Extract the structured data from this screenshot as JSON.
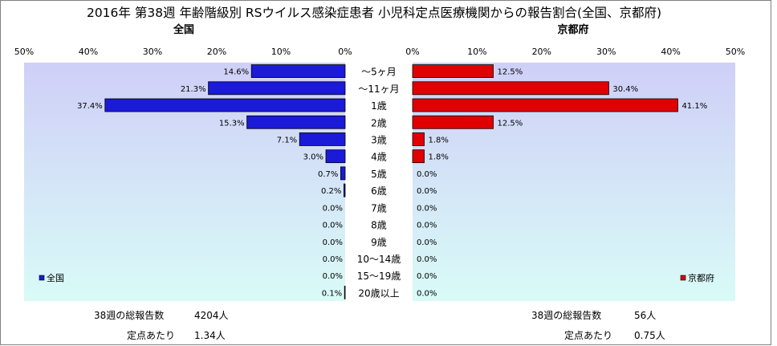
{
  "title": "2016年 第38週 年齢階級別 RSウイルス感染症患者 小児科定点医療機関からの報告割合(全国、京都府)",
  "colors": {
    "left_bar": "#1a1ad8",
    "right_bar": "#e00000",
    "plot_bg_top": "#cfcff7",
    "plot_bg_bottom": "#d9fbf7"
  },
  "chart_data": [
    {
      "type": "bar",
      "orientation": "horizontal",
      "direction": "right-to-left",
      "title": "全国",
      "legend": "全国",
      "legend_position": "bottom-left",
      "grid": false,
      "xlim": [
        0,
        50
      ],
      "x_ticks": [
        "50%",
        "40%",
        "30%",
        "20%",
        "10%",
        "0%"
      ],
      "categories": [
        "～5ヶ月",
        "～11ヶ月",
        "1歳",
        "2歳",
        "3歳",
        "4歳",
        "5歳",
        "6歳",
        "7歳",
        "8歳",
        "9歳",
        "10～14歳",
        "15～19歳",
        "20歳以上"
      ],
      "values": [
        14.6,
        21.3,
        37.4,
        15.3,
        7.1,
        3.0,
        0.7,
        0.2,
        0.0,
        0.0,
        0.0,
        0.0,
        0.0,
        0.1
      ],
      "data_labels": [
        "14.6%",
        "21.3%",
        "37.4%",
        "15.3%",
        "7.1%",
        "3.0%",
        "0.7%",
        "0.2%",
        "0.0%",
        "0.0%",
        "0.0%",
        "0.0%",
        "0.0%",
        "0.1%"
      ]
    },
    {
      "type": "bar",
      "orientation": "horizontal",
      "direction": "left-to-right",
      "title": "京都府",
      "legend": "京都府",
      "legend_position": "bottom-right",
      "grid": false,
      "xlim": [
        0,
        50
      ],
      "x_ticks": [
        "0%",
        "10%",
        "20%",
        "30%",
        "40%",
        "50%"
      ],
      "categories": [
        "～5ヶ月",
        "～11ヶ月",
        "1歳",
        "2歳",
        "3歳",
        "4歳",
        "5歳",
        "6歳",
        "7歳",
        "8歳",
        "9歳",
        "10～14歳",
        "15～19歳",
        "20歳以上"
      ],
      "values": [
        12.5,
        30.4,
        41.1,
        12.5,
        1.8,
        1.8,
        0.0,
        0.0,
        0.0,
        0.0,
        0.0,
        0.0,
        0.0,
        0.0
      ],
      "data_labels": [
        "12.5%",
        "30.4%",
        "41.1%",
        "12.5%",
        "1.8%",
        "1.8%",
        "0.0%",
        "0.0%",
        "0.0%",
        "0.0%",
        "0.0%",
        "0.0%",
        "0.0%",
        "0.0%"
      ]
    }
  ],
  "footer": {
    "left": {
      "reports_label": "38週の総報告数",
      "reports_value": "4204人",
      "per_site_label": "定点あたり",
      "per_site_value": "1.34人"
    },
    "right": {
      "reports_label": "38週の総報告数",
      "reports_value": "56人",
      "per_site_label": "定点あたり",
      "per_site_value": "0.75人"
    }
  }
}
